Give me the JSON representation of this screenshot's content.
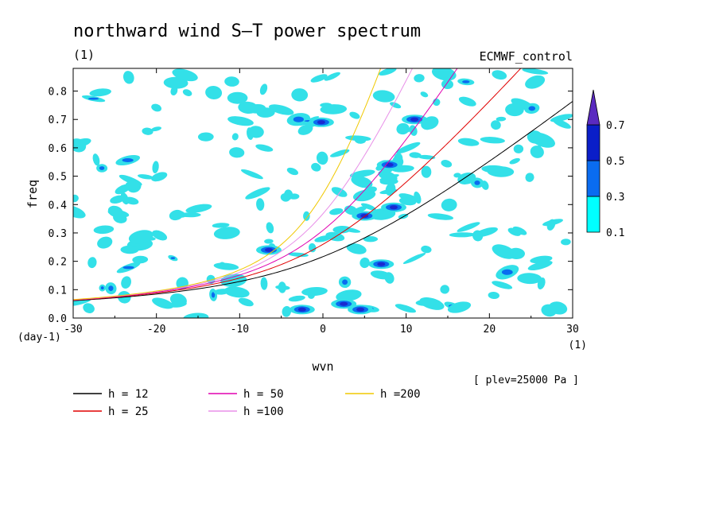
{
  "chart_data": {
    "type": "contour",
    "title": "northward wind S–T power spectrum",
    "subtitle_left": "(1)",
    "subtitle_right": "ECMWF_control",
    "xlabel": "wvn",
    "ylabel": "freq",
    "x_unit_label": "(1)",
    "y_unit_label": "(day-1)",
    "level_note": "[ plev=25000 Pa ]",
    "xlim": [
      -30,
      30
    ],
    "ylim": [
      0.0,
      0.88
    ],
    "x_ticks": [
      "-30",
      "-20",
      "-10",
      "0",
      "10",
      "20",
      "30"
    ],
    "y_ticks": [
      "0.0",
      "0.1",
      "0.2",
      "0.3",
      "0.4",
      "0.5",
      "0.6",
      "0.7",
      "0.8"
    ],
    "colorbar": {
      "levels": [
        "0.1",
        "0.3",
        "0.5",
        "0.7"
      ],
      "colors": [
        "#00ffff",
        "#0a6cf0",
        "#0a1ec8",
        "#5a2ac0"
      ]
    },
    "contour_colors": {
      "low": "#33e0e8",
      "mid": "#0a6cf0",
      "high": "#1a2ad0"
    },
    "dispersion_curves": [
      {
        "label": "h = 12",
        "color": "#000000",
        "h": 12
      },
      {
        "label": "h = 25",
        "color": "#e00000",
        "h": 25
      },
      {
        "label": "h = 50",
        "color": "#e000b0",
        "h": 50
      },
      {
        "label": "h =100",
        "color": "#e890e8",
        "h": 100
      },
      {
        "label": "h =200",
        "color": "#f0c800",
        "h": 200
      }
    ]
  }
}
